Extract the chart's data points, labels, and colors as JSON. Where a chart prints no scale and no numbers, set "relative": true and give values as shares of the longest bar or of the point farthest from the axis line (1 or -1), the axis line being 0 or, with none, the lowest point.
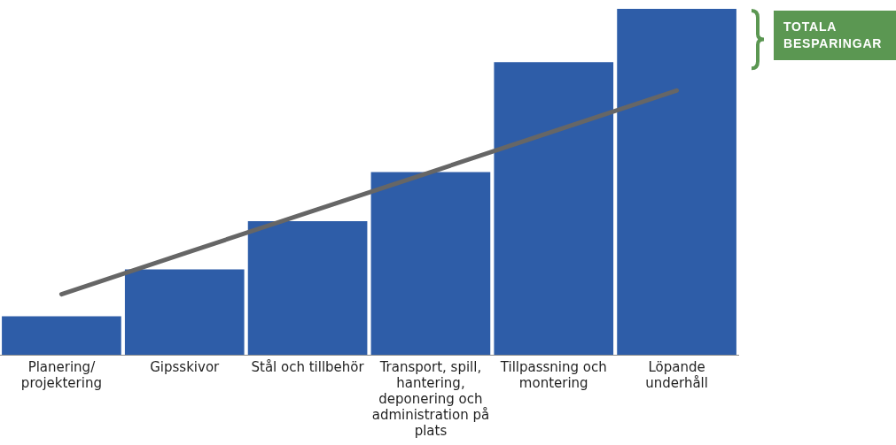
{
  "chart_data": {
    "type": "bar",
    "relative": true,
    "categories": [
      "Planering/projektering",
      "Gipsskivor",
      "Stål och tillbehör",
      "Transport, spill, hantering, deponering och administration på plats",
      "Tillpassning och montering",
      "Löpande underhåll"
    ],
    "series": [
      {
        "color": "#2e5da8",
        "values": [
          0.111,
          0.247,
          0.386,
          0.528,
          0.846,
          1
        ]
      },
      {
        "type": "line",
        "color": "#666666",
        "values": [
          0.175,
          0.293,
          0.411,
          0.528,
          0.646,
          0.764
        ]
      }
    ],
    "marker": "none",
    "line_style": "solid",
    "annotations": [
      "TOTALA BESPARINGAR"
    ]
  }
}
